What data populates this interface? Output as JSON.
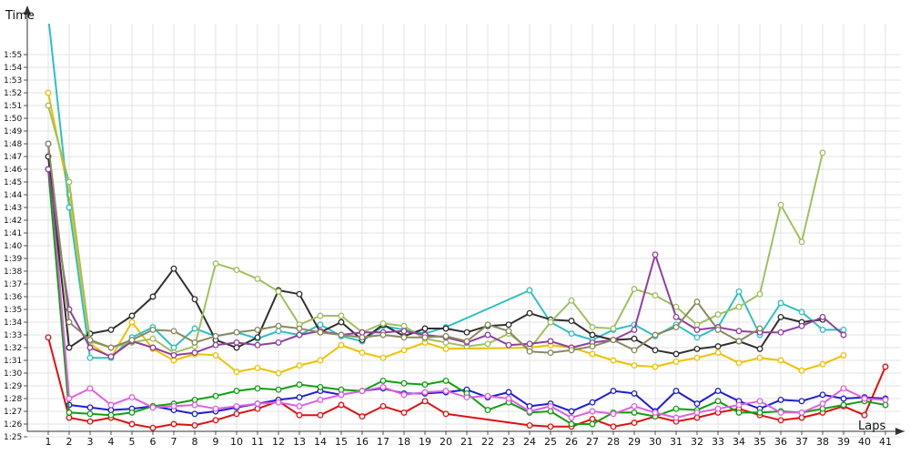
{
  "chart_data": {
    "type": "line",
    "ylabel": "Time",
    "xlabel": "Laps",
    "x_ticks": [
      "1",
      "2",
      "3",
      "4",
      "5",
      "6",
      "7",
      "8",
      "9",
      "10",
      "11",
      "12",
      "13",
      "14",
      "15",
      "16",
      "17",
      "18",
      "19",
      "20",
      "21",
      "22",
      "23",
      "24",
      "25",
      "26",
      "27",
      "28",
      "29",
      "30",
      "31",
      "32",
      "33",
      "34",
      "35",
      "36",
      "37",
      "38",
      "39",
      "40",
      "41"
    ],
    "y_ticks": [
      "1:25",
      "1:26",
      "1:27",
      "1:28",
      "1:29",
      "1:30",
      "1:31",
      "1:32",
      "1:33",
      "1:34",
      "1:35",
      "1:36",
      "1:37",
      "1:38",
      "1:39",
      "1:40",
      "1:41",
      "1:42",
      "1:43",
      "1:44",
      "1:45",
      "1:46",
      "1:47",
      "1:48",
      "1:49",
      "1:50",
      "1:51",
      "1:52",
      "1:53",
      "1:54",
      "1:55"
    ],
    "y_range_seconds": [
      84,
      119
    ],
    "grid": true,
    "legend": "none",
    "series": [
      {
        "color": "#e01010",
        "values": [
          92.8,
          86.5,
          86.2,
          86.5,
          86.0,
          85.7,
          86.0,
          85.9,
          86.3,
          86.8,
          87.2,
          87.8,
          86.7,
          86.7,
          87.5,
          86.6,
          87.4,
          86.9,
          87.8,
          86.8,
          null,
          null,
          null,
          85.9,
          85.8,
          85.8,
          86.4,
          85.8,
          86.1,
          86.6,
          86.2,
          86.5,
          86.9,
          87.2,
          86.7,
          86.3,
          86.5,
          86.9,
          87.4,
          86.7,
          90.5
        ]
      },
      {
        "color": "#2020d0",
        "values": [
          108,
          87.5,
          87.3,
          87.1,
          87.2,
          87.4,
          87.1,
          86.8,
          87.0,
          87.3,
          87.6,
          87.9,
          88.1,
          88.6,
          88.3,
          88.6,
          88.8,
          88.4,
          88.4,
          88.5,
          88.7,
          88.1,
          88.5,
          87.4,
          87.6,
          87.0,
          87.7,
          88.6,
          88.4,
          87.0,
          88.6,
          87.6,
          88.6,
          87.8,
          87.2,
          87.9,
          87.8,
          88.3,
          88.0,
          88.1,
          88.0
        ]
      },
      {
        "color": "#10a010",
        "values": [
          106,
          86.9,
          86.8,
          86.7,
          86.9,
          87.4,
          87.6,
          87.9,
          88.2,
          88.6,
          88.8,
          88.7,
          89.1,
          88.9,
          88.7,
          88.6,
          89.4,
          89.2,
          89.1,
          89.4,
          88.4,
          87.1,
          87.7,
          86.9,
          87.0,
          86.0,
          86.0,
          86.9,
          86.9,
          86.6,
          87.2,
          87.1,
          87.8,
          86.9,
          86.9,
          87.0,
          86.9,
          87.2,
          87.5,
          87.8,
          87.5
        ]
      },
      {
        "color": "#e060e0",
        "values": [
          108,
          88.0,
          88.8,
          87.5,
          88.1,
          87.3,
          87.4,
          87.5,
          87.2,
          87.4,
          87.6,
          87.7,
          87.4,
          87.9,
          88.3,
          88.6,
          88.9,
          88.3,
          88.5,
          88.6,
          88.1,
          88.2,
          88.0,
          87.0,
          87.4,
          86.5,
          87.0,
          86.8,
          87.4,
          86.9,
          86.5,
          86.9,
          87.2,
          87.5,
          87.8,
          86.9,
          86.9,
          87.6,
          88.8,
          88.0,
          87.9
        ]
      },
      {
        "color": "#f0c000",
        "values": [
          112,
          104,
          92.3,
          91.2,
          94.0,
          91.9,
          91.0,
          91.5,
          91.4,
          90.1,
          90.4,
          90.0,
          90.6,
          91.0,
          92.2,
          91.6,
          91.2,
          91.8,
          92.4,
          91.9,
          null,
          null,
          null,
          92.0,
          92.2,
          92.0,
          91.5,
          91.0,
          90.6,
          90.5,
          90.9,
          91.2,
          91.6,
          90.8,
          91.2,
          91.0,
          90.2,
          90.7,
          91.4,
          null,
          null
        ]
      },
      {
        "color": "#30c0c0",
        "values": [
          118,
          103,
          91.2,
          91.2,
          92.8,
          93.6,
          92.0,
          93.5,
          92.9,
          93.2,
          92.7,
          93.3,
          93.0,
          93.8,
          92.9,
          92.5,
          93.7,
          93.4,
          93.1,
          93.6,
          null,
          null,
          null,
          96.5,
          94.0,
          93.1,
          92.6,
          93.4,
          93.8,
          92.9,
          93.8,
          92.8,
          93.6,
          96.4,
          93.0,
          95.5,
          94.8,
          93.4,
          93.4,
          null,
          null
        ]
      },
      {
        "color": "#303030",
        "values": [
          107,
          92.0,
          93.1,
          93.4,
          94.5,
          96.0,
          98.2,
          95.8,
          92.6,
          92.0,
          92.8,
          96.5,
          96.2,
          93.2,
          94.0,
          92.6,
          93.8,
          92.9,
          93.5,
          93.5,
          93.2,
          93.7,
          93.8,
          94.7,
          94.2,
          94.1,
          93.0,
          92.6,
          92.7,
          91.8,
          91.5,
          91.9,
          92.1,
          92.5,
          91.9,
          94.4,
          94.0,
          94.2,
          null,
          null,
          null
        ]
      },
      {
        "color": "#a0c060",
        "values": [
          111,
          105,
          92.5,
          92.0,
          92.4,
          92.7,
          91.6,
          92.1,
          98.6,
          98.1,
          97.4,
          96.4,
          93.8,
          94.5,
          94.5,
          93.2,
          93.9,
          93.7,
          92.7,
          92.4,
          92.1,
          92.3,
          93.1,
          91.9,
          94.0,
          95.7,
          93.6,
          93.5,
          96.6,
          96.1,
          95.2,
          93.8,
          94.6,
          95.2,
          96.2,
          103.2,
          100.3,
          107.3,
          null,
          null,
          null
        ]
      },
      {
        "color": "#9040a0",
        "values": [
          106,
          95.0,
          92.0,
          91.3,
          92.5,
          92.0,
          91.4,
          91.6,
          92.2,
          92.4,
          92.2,
          92.4,
          93.0,
          93.3,
          93.0,
          93.2,
          93.2,
          93.3,
          93.0,
          92.8,
          92.4,
          93.0,
          92.2,
          92.3,
          92.5,
          92.0,
          92.4,
          92.6,
          93.4,
          99.3,
          94.4,
          93.4,
          93.6,
          93.3,
          93.2,
          93.2,
          93.7,
          94.4,
          93.0,
          null,
          null
        ]
      },
      {
        "color": "#8a8a60",
        "values": [
          108,
          94.0,
          92.6,
          92.0,
          92.6,
          93.4,
          93.3,
          92.4,
          92.9,
          93.2,
          93.4,
          93.7,
          93.5,
          93.2,
          93.0,
          92.8,
          93.0,
          92.8,
          92.8,
          92.9,
          92.5,
          93.8,
          93.3,
          91.7,
          91.6,
          91.8,
          92.1,
          92.6,
          91.8,
          93.0,
          93.6,
          95.6,
          93.4,
          92.5,
          93.5,
          null,
          null,
          null,
          null,
          null,
          null
        ]
      }
    ]
  }
}
